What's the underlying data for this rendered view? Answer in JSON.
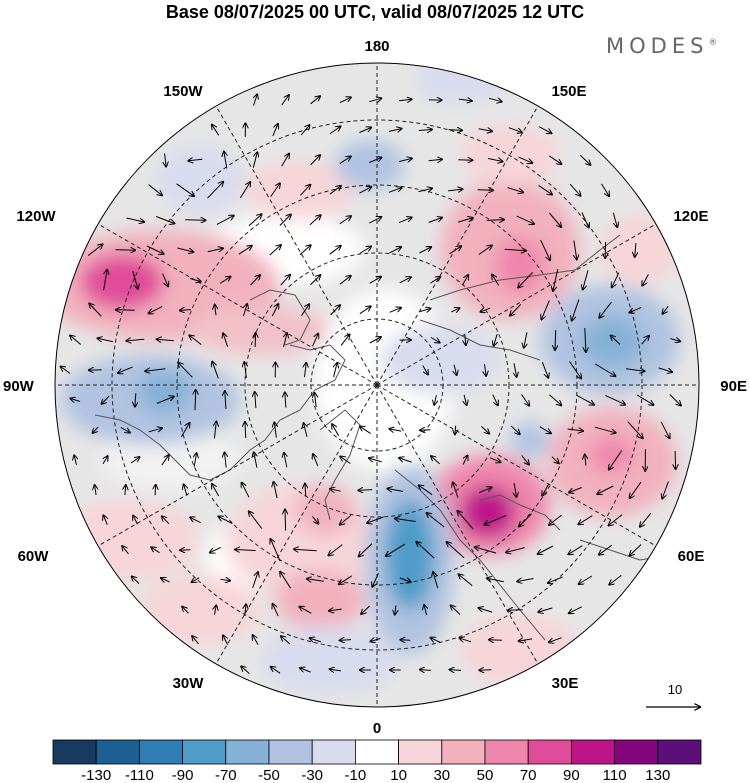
{
  "title": "Base 08/07/2025 00 UTC, valid 08/07/2025 12 UTC",
  "brand": "MODES",
  "brand_mark": "®",
  "longitudes": {
    "top": "180",
    "bottom": "0",
    "left": "90W",
    "right": "90E",
    "upper_left": "150W",
    "upper_right": "150E",
    "mid_left": "120W",
    "mid_right": "120E",
    "lower_left": "60W",
    "lower_right": "60E",
    "bottom_left": "30W",
    "bottom_right": "30E"
  },
  "reference_vector": {
    "label": "10",
    "icon": "arrow-right-icon"
  },
  "colorbar": {
    "labels": [
      "-130",
      "-110",
      "-90",
      "-70",
      "-50",
      "-30",
      "-10",
      "10",
      "30",
      "50",
      "70",
      "90",
      "110",
      "130"
    ],
    "colors": [
      "#173a5e",
      "#1d5f92",
      "#2e7db5",
      "#4f9cc9",
      "#86b1d6",
      "#b1c3e1",
      "#d9dcee",
      "#ffffff",
      "#f7d5d8",
      "#f2b1bd",
      "#ef86ab",
      "#e14c9a",
      "#be148a",
      "#85057e",
      "#5b0f79"
    ]
  },
  "colors": {
    "land_outline": "#555555",
    "grid": "#222222",
    "neutral_fill": "#e6e6e6"
  }
}
